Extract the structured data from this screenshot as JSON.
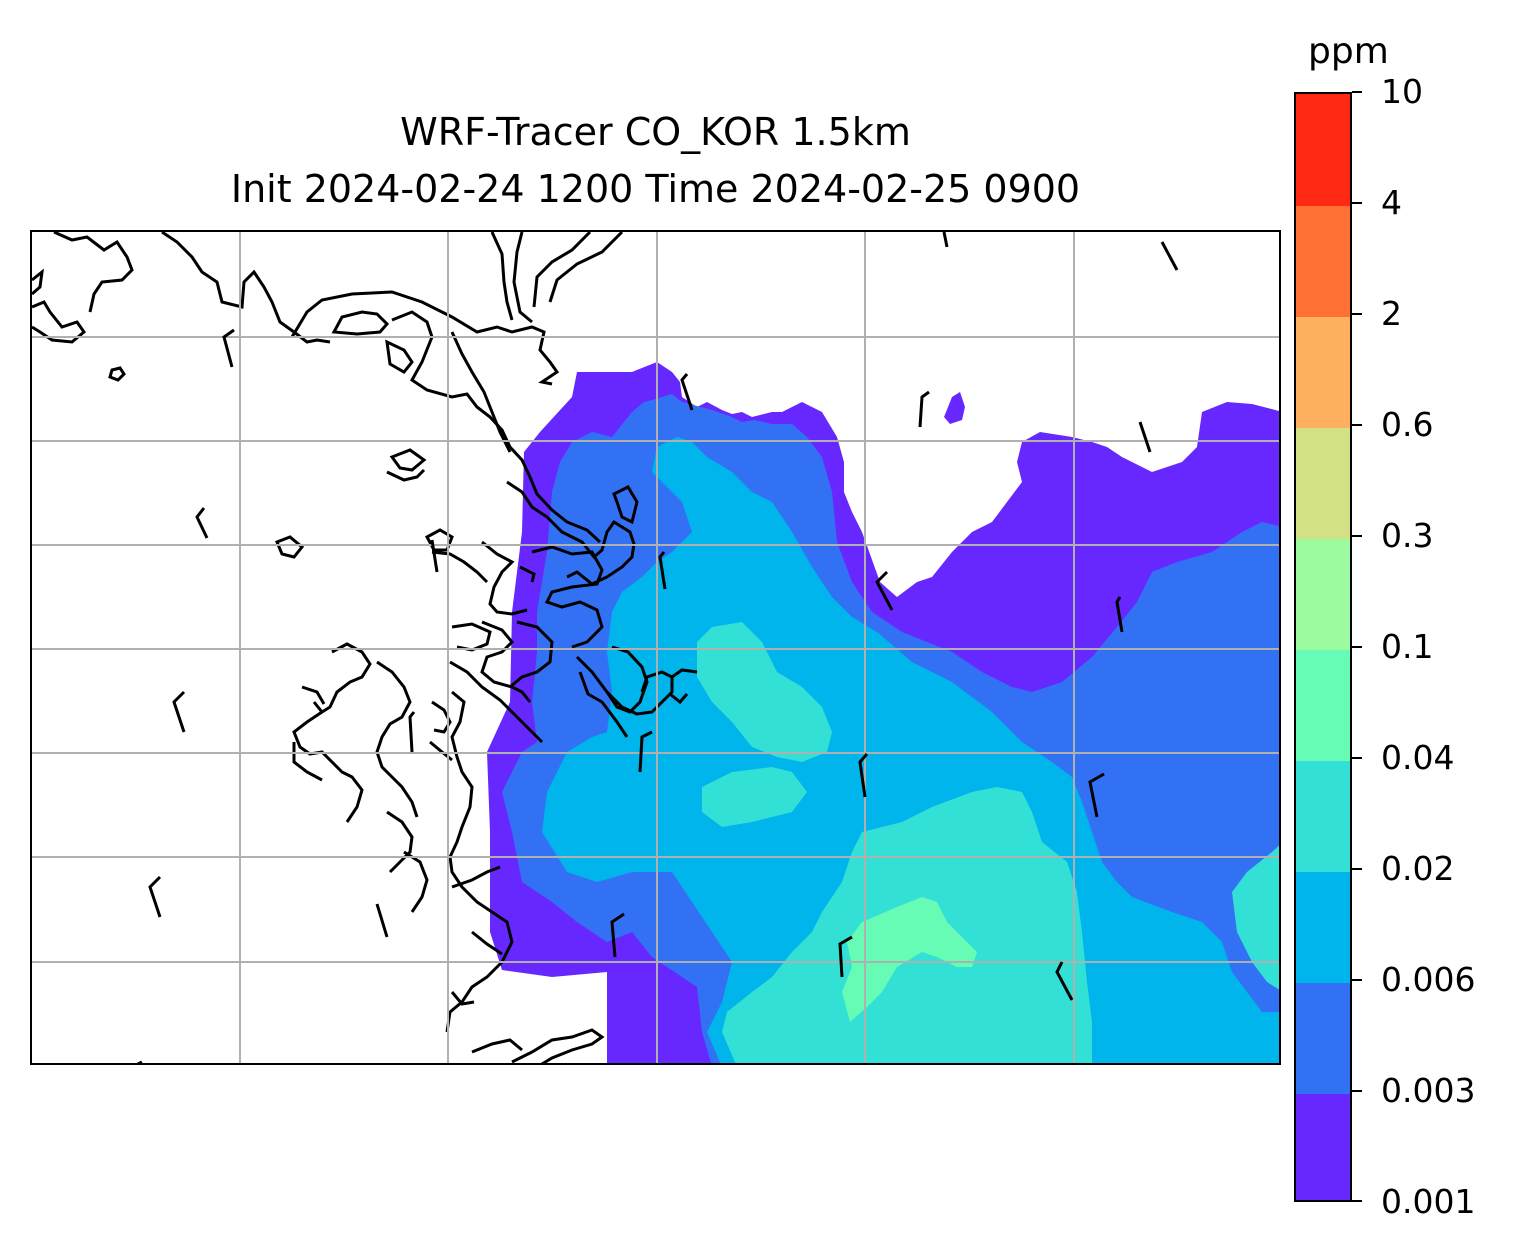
{
  "figure": {
    "title_line1": "WRF-Tracer CO_KOR 1.5km",
    "title_line2": "Init 2024-02-24 1200 Time 2024-02-25 0900"
  },
  "colorbar": {
    "unit": "ppm",
    "levels": [
      "0.001",
      "0.003",
      "0.006",
      "0.02",
      "0.04",
      "0.1",
      "0.3",
      "0.6",
      "2",
      "4",
      "10"
    ],
    "colors": [
      "#6628ff",
      "#3371f4",
      "#00b4ec",
      "#33e0d5",
      "#66fcb6",
      "#9bfb9e",
      "#d1e184",
      "#ffb05e",
      "#ff7034",
      "#ff2914"
    ]
  },
  "map": {
    "gridlines": true,
    "gridline_color": "#b0b0b0",
    "coastline_color": "#000000",
    "wind_barb_color": "#000000",
    "wind_barb_count": 20
  }
}
